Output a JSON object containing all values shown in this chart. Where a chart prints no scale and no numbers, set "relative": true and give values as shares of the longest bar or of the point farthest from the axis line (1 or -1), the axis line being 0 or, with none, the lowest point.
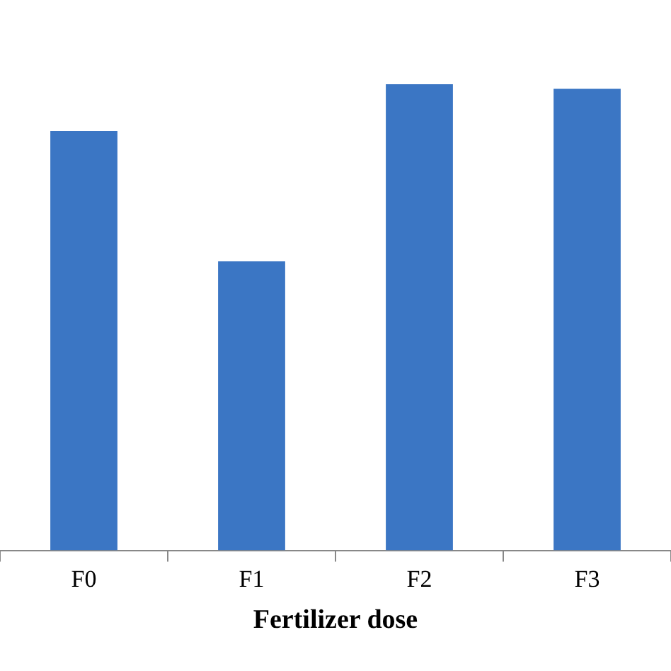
{
  "chart_data": {
    "type": "bar",
    "relative": true,
    "xlabel": "Fertilizer dose",
    "categories": [
      "F0",
      "F1",
      "F2",
      "F3"
    ],
    "values": [
      0.9,
      0.62,
      1,
      0.99
    ],
    "color": "#3b76c4",
    "grid": false,
    "legend": false
  }
}
